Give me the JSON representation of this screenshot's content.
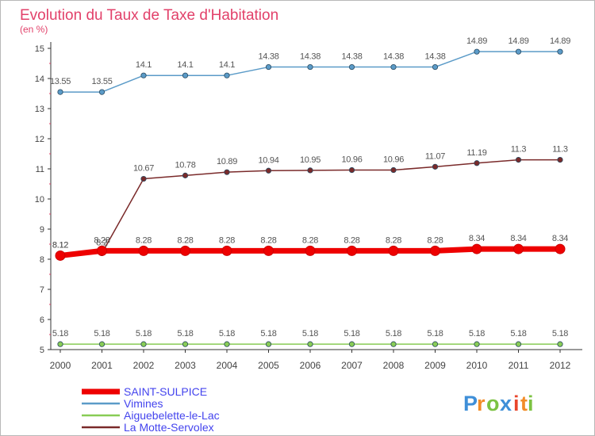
{
  "chart_data": {
    "type": "line",
    "title": "Evolution du Taux de Taxe d'Habitation",
    "ylabel": "(en %)",
    "xlabel": "",
    "ylim": [
      5,
      15
    ],
    "yticks": [
      "5",
      "6",
      "7",
      "8",
      "9",
      "10",
      "11",
      "12",
      "13",
      "14",
      "15"
    ],
    "categories": [
      "2000",
      "2001",
      "2002",
      "2003",
      "2004",
      "2005",
      "2006",
      "2007",
      "2008",
      "2009",
      "2010",
      "2011",
      "2012"
    ],
    "grid": false,
    "legend_position": "bottom-left",
    "series": [
      {
        "name": "Vimines",
        "color": "#5b9bc8",
        "style": "thin",
        "values": [
          13.55,
          13.55,
          14.1,
          14.1,
          14.1,
          14.38,
          14.38,
          14.38,
          14.38,
          14.38,
          14.89,
          14.89,
          14.89
        ],
        "labels": [
          "13.55",
          "13.55",
          "14.1",
          "14.1",
          "14.1",
          "14.38",
          "14.38",
          "14.38",
          "14.38",
          "14.38",
          "14.89",
          "14.89",
          "14.89"
        ]
      },
      {
        "name": "La Motte-Servolex",
        "color": "#7a2a2a",
        "style": "thin",
        "values": [
          8.12,
          8.2,
          10.67,
          10.78,
          10.89,
          10.94,
          10.95,
          10.96,
          10.96,
          11.07,
          11.19,
          11.3,
          11.3
        ],
        "labels": [
          "8.12",
          "8.2",
          "10.67",
          "10.78",
          "10.89",
          "10.94",
          "10.95",
          "10.96",
          "10.96",
          "11.07",
          "11.19",
          "11.3",
          "11.3"
        ]
      },
      {
        "name": "SAINT-SULPICE",
        "color": "#ee0000",
        "style": "thick",
        "values": [
          8.12,
          8.28,
          8.28,
          8.28,
          8.28,
          8.28,
          8.28,
          8.28,
          8.28,
          8.28,
          8.34,
          8.34,
          8.34
        ],
        "labels": [
          "8.12",
          "8.28",
          "8.28",
          "8.28",
          "8.28",
          "8.28",
          "8.28",
          "8.28",
          "8.28",
          "8.28",
          "8.34",
          "8.34",
          "8.34"
        ]
      },
      {
        "name": "Aiguebelette-le-Lac",
        "color": "#88cc55",
        "style": "thin",
        "values": [
          5.18,
          5.18,
          5.18,
          5.18,
          5.18,
          5.18,
          5.18,
          5.18,
          5.18,
          5.18,
          5.18,
          5.18,
          5.18
        ],
        "labels": [
          "5.18",
          "5.18",
          "5.18",
          "5.18",
          "5.18",
          "5.18",
          "5.18",
          "5.18",
          "5.18",
          "5.18",
          "5.18",
          "5.18",
          "5.18"
        ]
      }
    ],
    "legend_order": [
      "SAINT-SULPICE",
      "Vimines",
      "Aiguebelette-le-Lac",
      "La Motte-Servolex"
    ]
  },
  "logo": {
    "text": "Proxiti",
    "letters": [
      "P",
      "r",
      "o",
      "x",
      "i",
      "t",
      "i"
    ],
    "letter_colors": [
      "#3f8fd8",
      "#f28c28",
      "#7cc242",
      "#3f8fd8",
      "#e8452c",
      "#f28c28",
      "#7cc242"
    ]
  }
}
